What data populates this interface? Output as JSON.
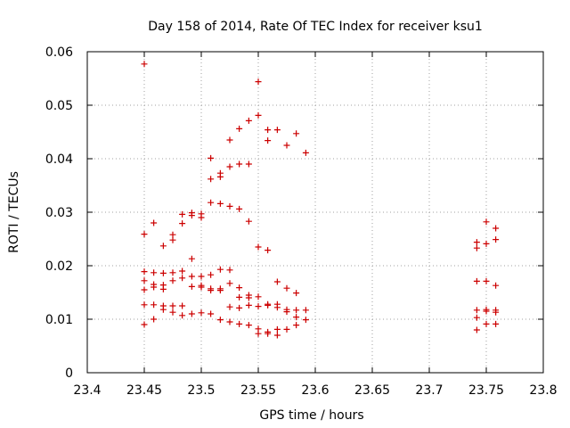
{
  "chart_data": {
    "type": "scatter",
    "title": "Day 158 of 2014, Rate Of TEC Index for receiver ksu1",
    "xlabel": "GPS time / hours",
    "ylabel": "ROTI / TECUs",
    "xlim": [
      23.4,
      23.8
    ],
    "ylim": [
      0,
      0.06
    ],
    "x_ticks": [
      23.4,
      23.45,
      23.5,
      23.55,
      23.6,
      23.65,
      23.7,
      23.75,
      23.8
    ],
    "x_tick_labels": [
      "23.4",
      "23.45",
      "23.5",
      "23.55",
      "23.6",
      "23.65",
      "23.7",
      "23.75",
      "23.8"
    ],
    "y_ticks": [
      0,
      0.01,
      0.02,
      0.03,
      0.04,
      0.05,
      0.06
    ],
    "y_tick_labels": [
      "0",
      "0.01",
      "0.02",
      "0.03",
      "0.04",
      "0.05",
      "0.06"
    ],
    "grid": true,
    "marker": "+",
    "color": "#cc0000",
    "points": [
      [
        23.45,
        0.0577
      ],
      [
        23.45,
        0.0259
      ],
      [
        23.45,
        0.0189
      ],
      [
        23.45,
        0.0172
      ],
      [
        23.45,
        0.0155
      ],
      [
        23.45,
        0.0127
      ],
      [
        23.45,
        0.009
      ],
      [
        23.4583,
        0.028
      ],
      [
        23.4583,
        0.0187
      ],
      [
        23.4583,
        0.0165
      ],
      [
        23.4583,
        0.016
      ],
      [
        23.4583,
        0.0127
      ],
      [
        23.4583,
        0.01
      ],
      [
        23.4667,
        0.0237
      ],
      [
        23.4667,
        0.0186
      ],
      [
        23.4667,
        0.0164
      ],
      [
        23.4667,
        0.0156
      ],
      [
        23.4667,
        0.0125
      ],
      [
        23.4667,
        0.0118
      ],
      [
        23.475,
        0.0258
      ],
      [
        23.475,
        0.0248
      ],
      [
        23.475,
        0.0187
      ],
      [
        23.475,
        0.0172
      ],
      [
        23.475,
        0.0125
      ],
      [
        23.475,
        0.0113
      ],
      [
        23.4833,
        0.0296
      ],
      [
        23.4833,
        0.0279
      ],
      [
        23.4833,
        0.019
      ],
      [
        23.4833,
        0.0177
      ],
      [
        23.4833,
        0.0125
      ],
      [
        23.4833,
        0.0107
      ],
      [
        23.4917,
        0.0299
      ],
      [
        23.4917,
        0.0294
      ],
      [
        23.4917,
        0.0213
      ],
      [
        23.4917,
        0.018
      ],
      [
        23.4917,
        0.0161
      ],
      [
        23.4917,
        0.011
      ],
      [
        23.5,
        0.0297
      ],
      [
        23.5,
        0.029
      ],
      [
        23.5,
        0.018
      ],
      [
        23.5,
        0.0163
      ],
      [
        23.5,
        0.016
      ],
      [
        23.5,
        0.0112
      ],
      [
        23.5083,
        0.0401
      ],
      [
        23.5083,
        0.0362
      ],
      [
        23.5083,
        0.0318
      ],
      [
        23.5083,
        0.0183
      ],
      [
        23.5083,
        0.0157
      ],
      [
        23.5083,
        0.0154
      ],
      [
        23.5083,
        0.011
      ],
      [
        23.5167,
        0.0373
      ],
      [
        23.5167,
        0.0366
      ],
      [
        23.5167,
        0.0316
      ],
      [
        23.5167,
        0.0193
      ],
      [
        23.5167,
        0.0157
      ],
      [
        23.5167,
        0.0154
      ],
      [
        23.5167,
        0.0099
      ],
      [
        23.525,
        0.0435
      ],
      [
        23.525,
        0.0385
      ],
      [
        23.525,
        0.0311
      ],
      [
        23.525,
        0.0192
      ],
      [
        23.525,
        0.0167
      ],
      [
        23.525,
        0.0123
      ],
      [
        23.525,
        0.0095
      ],
      [
        23.5333,
        0.0456
      ],
      [
        23.5333,
        0.039
      ],
      [
        23.5333,
        0.0306
      ],
      [
        23.5333,
        0.0159
      ],
      [
        23.5333,
        0.0141
      ],
      [
        23.5333,
        0.0121
      ],
      [
        23.5333,
        0.0091
      ],
      [
        23.5417,
        0.0471
      ],
      [
        23.5417,
        0.039
      ],
      [
        23.5417,
        0.0283
      ],
      [
        23.5417,
        0.0145
      ],
      [
        23.5417,
        0.014
      ],
      [
        23.5417,
        0.0126
      ],
      [
        23.5417,
        0.0089
      ],
      [
        23.55,
        0.0544
      ],
      [
        23.55,
        0.0481
      ],
      [
        23.55,
        0.0235
      ],
      [
        23.55,
        0.0142
      ],
      [
        23.55,
        0.0124
      ],
      [
        23.55,
        0.0082
      ],
      [
        23.55,
        0.0073
      ],
      [
        23.5583,
        0.0454
      ],
      [
        23.5583,
        0.0434
      ],
      [
        23.5583,
        0.0229
      ],
      [
        23.5583,
        0.0128
      ],
      [
        23.5583,
        0.0126
      ],
      [
        23.5583,
        0.0076
      ],
      [
        23.5583,
        0.0073
      ],
      [
        23.5667,
        0.0454
      ],
      [
        23.5667,
        0.017
      ],
      [
        23.5667,
        0.0128
      ],
      [
        23.5667,
        0.0122
      ],
      [
        23.5667,
        0.0081
      ],
      [
        23.5667,
        0.007
      ],
      [
        23.575,
        0.0425
      ],
      [
        23.575,
        0.0158
      ],
      [
        23.575,
        0.0118
      ],
      [
        23.575,
        0.0114
      ],
      [
        23.575,
        0.0081
      ],
      [
        23.5833,
        0.0447
      ],
      [
        23.5833,
        0.0149
      ],
      [
        23.5833,
        0.0117
      ],
      [
        23.5833,
        0.0104
      ],
      [
        23.5833,
        0.0089
      ],
      [
        23.5917,
        0.0411
      ],
      [
        23.5917,
        0.0117
      ],
      [
        23.5917,
        0.0099
      ],
      [
        23.7417,
        0.0244
      ],
      [
        23.7417,
        0.0233
      ],
      [
        23.7417,
        0.0171
      ],
      [
        23.7417,
        0.0117
      ],
      [
        23.7417,
        0.0103
      ],
      [
        23.7417,
        0.008
      ],
      [
        23.75,
        0.0282
      ],
      [
        23.75,
        0.0241
      ],
      [
        23.75,
        0.0171
      ],
      [
        23.75,
        0.0118
      ],
      [
        23.75,
        0.0115
      ],
      [
        23.75,
        0.0091
      ],
      [
        23.7583,
        0.027
      ],
      [
        23.7583,
        0.0249
      ],
      [
        23.7583,
        0.0163
      ],
      [
        23.7583,
        0.0117
      ],
      [
        23.7583,
        0.0113
      ],
      [
        23.7583,
        0.0091
      ]
    ]
  }
}
